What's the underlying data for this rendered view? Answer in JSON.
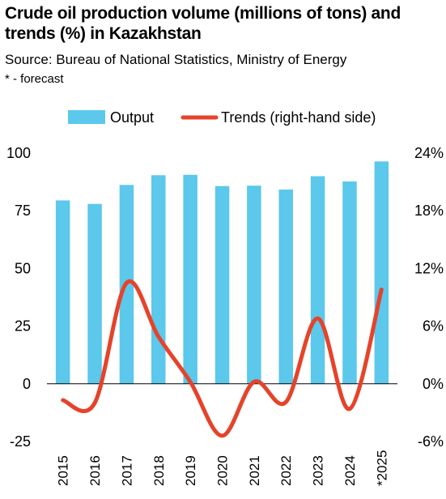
{
  "header": {
    "title": "Crude oil production volume (millions of tons) and trends (%) in Kazakhstan",
    "subtitle": "Source: Bureau of National Statistics, Ministry of Energy",
    "note": "* - forecast"
  },
  "colors": {
    "bar": "#5BC8EC",
    "line": "#E5432A",
    "axis": "#000000"
  },
  "chart_data": {
    "type": "bar",
    "categories": [
      "2015",
      "2016",
      "2017",
      "2018",
      "2019",
      "2020",
      "2021",
      "2022",
      "2023",
      "2024",
      "*2025"
    ],
    "series": [
      {
        "name": "Output",
        "type": "bar",
        "axis": "left",
        "values": [
          79.5,
          78.0,
          86.2,
          90.4,
          90.6,
          85.7,
          85.9,
          84.2,
          90.0,
          87.7,
          96.4
        ]
      },
      {
        "name": "Trends (right-hand side)",
        "type": "line",
        "axis": "right",
        "values": [
          -1.7,
          -2.0,
          10.5,
          4.9,
          0.2,
          -5.4,
          0.2,
          -1.9,
          6.8,
          -2.6,
          9.8
        ]
      }
    ],
    "y_left": {
      "ylim": [
        -25,
        100
      ],
      "ticks": [
        -25,
        0,
        25,
        50,
        75,
        100
      ],
      "tick_labels": [
        "-25",
        "0",
        "25",
        "50",
        "75",
        "100"
      ]
    },
    "y_right": {
      "ylim": [
        -6,
        24
      ],
      "ticks": [
        -6,
        0,
        6,
        12,
        18,
        24
      ],
      "tick_labels": [
        "-6%",
        "0%",
        "6%",
        "12%",
        "18%",
        "24%"
      ]
    },
    "legend": {
      "position": "top",
      "entries": [
        "Output",
        "Trends (right-hand side)"
      ]
    },
    "grid": false
  }
}
